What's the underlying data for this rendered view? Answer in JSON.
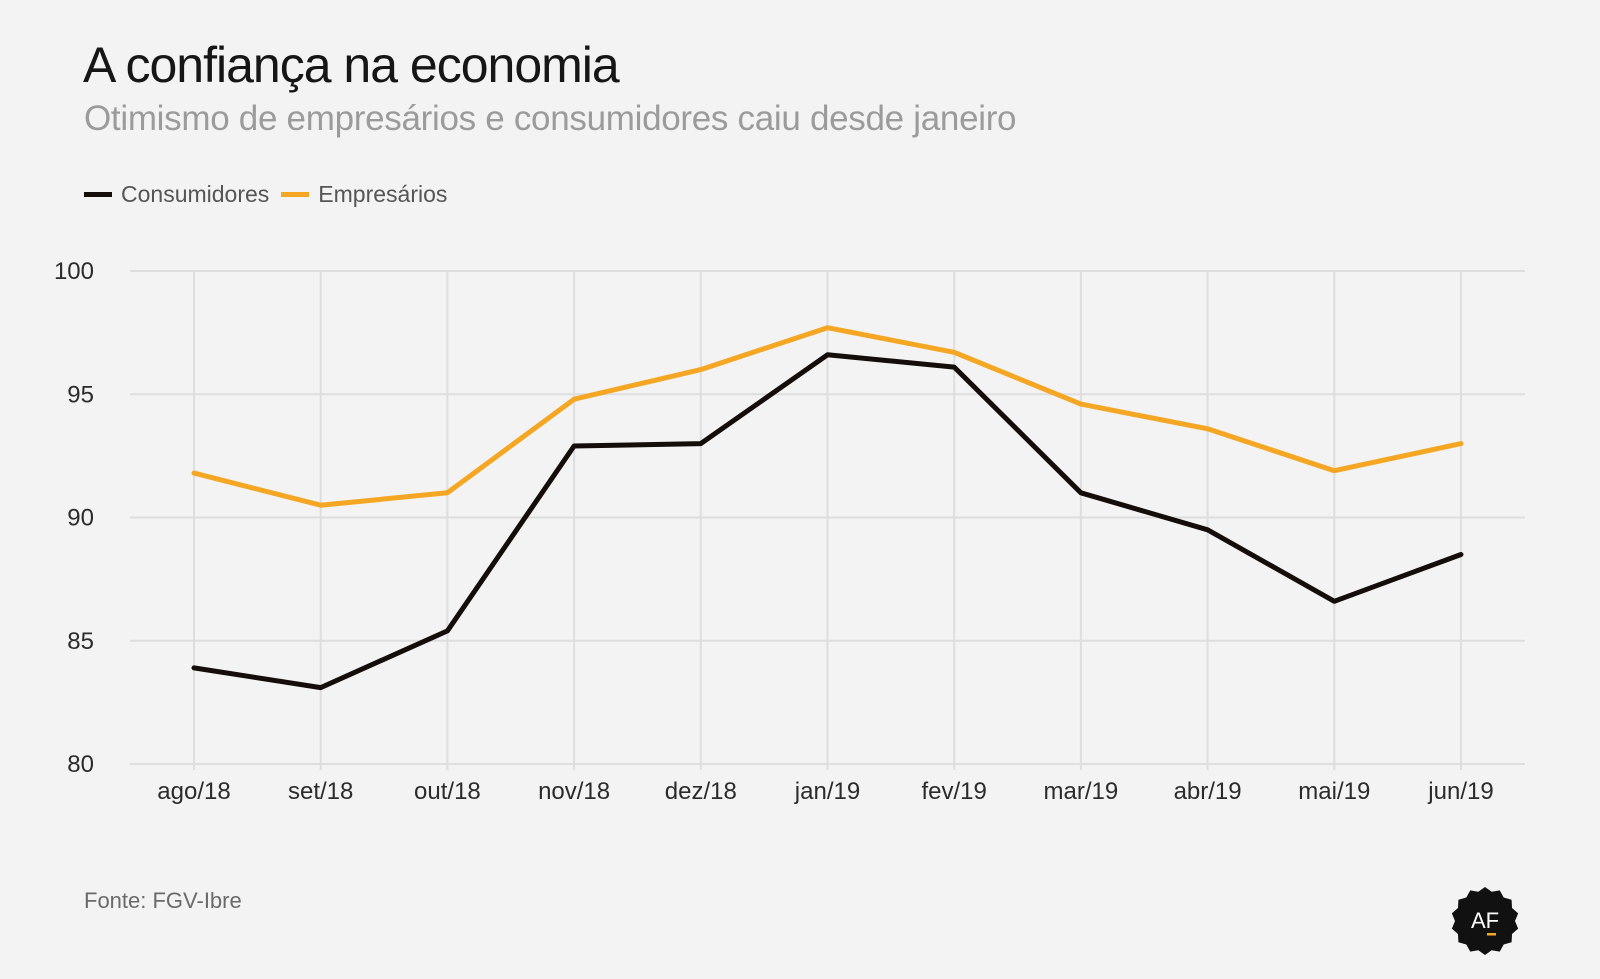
{
  "title": "A confiança na economia",
  "subtitle": "Otimismo de empresários e consumidores caiu desde janeiro",
  "source": "Fonte: FGV-Ibre",
  "logo_text": "AF",
  "colors": {
    "consumidores": "#140d0a",
    "empresarios": "#f5a623",
    "grid": "#dedede",
    "background": "#f3f3f3"
  },
  "chart_data": {
    "type": "line",
    "title": "A confiança na economia",
    "subtitle": "Otimismo de empresários e consumidores caiu desde janeiro",
    "xlabel": "",
    "ylabel": "",
    "ylim": [
      80,
      100
    ],
    "yticks": [
      80,
      85,
      90,
      95,
      100
    ],
    "grid": true,
    "legend_position": "top-left",
    "categories": [
      "ago/18",
      "set/18",
      "out/18",
      "nov/18",
      "dez/18",
      "jan/19",
      "fev/19",
      "mar/19",
      "abr/19",
      "mai/19",
      "jun/19"
    ],
    "series": [
      {
        "name": "Consumidores",
        "color": "#140d0a",
        "values": [
          83.9,
          83.1,
          85.4,
          92.9,
          93.0,
          96.6,
          96.1,
          91.0,
          89.5,
          86.6,
          88.5
        ]
      },
      {
        "name": "Empresários",
        "color": "#f5a623",
        "values": [
          91.8,
          90.5,
          91.0,
          94.8,
          96.0,
          97.7,
          96.7,
          94.6,
          93.6,
          91.9,
          93.0
        ]
      }
    ]
  }
}
